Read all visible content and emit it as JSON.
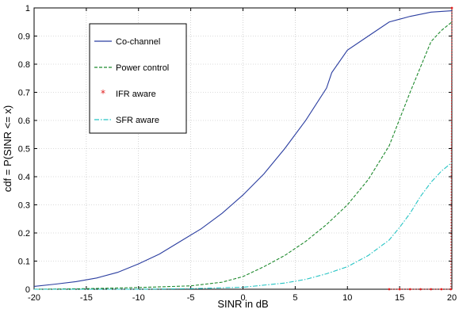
{
  "chart_data": {
    "type": "line",
    "xlabel": "SINR in dB",
    "ylabel": "cdf = P(SINR <= x)",
    "xlim": [
      -20,
      20
    ],
    "ylim": [
      0,
      1
    ],
    "xticks": [
      "-20",
      "-15",
      "-10",
      "-5",
      "0",
      "5",
      "10",
      "15",
      "20"
    ],
    "yticks": [
      "0",
      "0.1",
      "0.2",
      "0.3",
      "0.4",
      "0.5",
      "0.6",
      "0.7",
      "0.8",
      "0.9",
      "1"
    ],
    "grid": true,
    "legend_position": "upper-left",
    "series": [
      {
        "name": "Co-channel",
        "color": "#2b3ea0",
        "style": "solid",
        "x": [
          -20,
          -18,
          -16,
          -14,
          -12,
          -10,
          -8,
          -6,
          -4,
          -2,
          0,
          2,
          4,
          6,
          8,
          8.5,
          10,
          12,
          14,
          15,
          16,
          18,
          20
        ],
        "y": [
          0.01,
          0.018,
          0.027,
          0.04,
          0.06,
          0.09,
          0.125,
          0.17,
          0.215,
          0.27,
          0.335,
          0.41,
          0.5,
          0.6,
          0.715,
          0.77,
          0.85,
          0.9,
          0.95,
          0.96,
          0.97,
          0.985,
          0.99
        ]
      },
      {
        "name": "Power control",
        "color": "#1f8a2e",
        "style": "dashed",
        "x": [
          -20,
          -15,
          -10,
          -5,
          -2,
          0,
          2,
          4,
          6,
          8,
          10,
          12,
          14,
          16,
          18,
          19,
          20
        ],
        "y": [
          0.0,
          0.002,
          0.006,
          0.012,
          0.025,
          0.045,
          0.08,
          0.12,
          0.17,
          0.23,
          0.3,
          0.39,
          0.51,
          0.7,
          0.88,
          0.92,
          0.95
        ]
      },
      {
        "name": "IFR aware",
        "color": "#e02020",
        "style": "dotted",
        "x": [
          14,
          15,
          16,
          17,
          18,
          19,
          19.9,
          20
        ],
        "y": [
          0.0,
          0.0,
          0.0,
          0.0,
          0.0,
          0.0,
          0.0,
          1.0
        ]
      },
      {
        "name": "SFR aware",
        "color": "#25c4c4",
        "style": "dashdot",
        "x": [
          -20,
          -10,
          -5,
          0,
          4,
          6,
          8,
          10,
          12,
          14,
          15,
          16,
          17,
          18,
          19,
          20
        ],
        "y": [
          0.0,
          0.0,
          0.002,
          0.007,
          0.022,
          0.035,
          0.055,
          0.08,
          0.12,
          0.175,
          0.22,
          0.27,
          0.33,
          0.38,
          0.42,
          0.45
        ]
      }
    ]
  }
}
